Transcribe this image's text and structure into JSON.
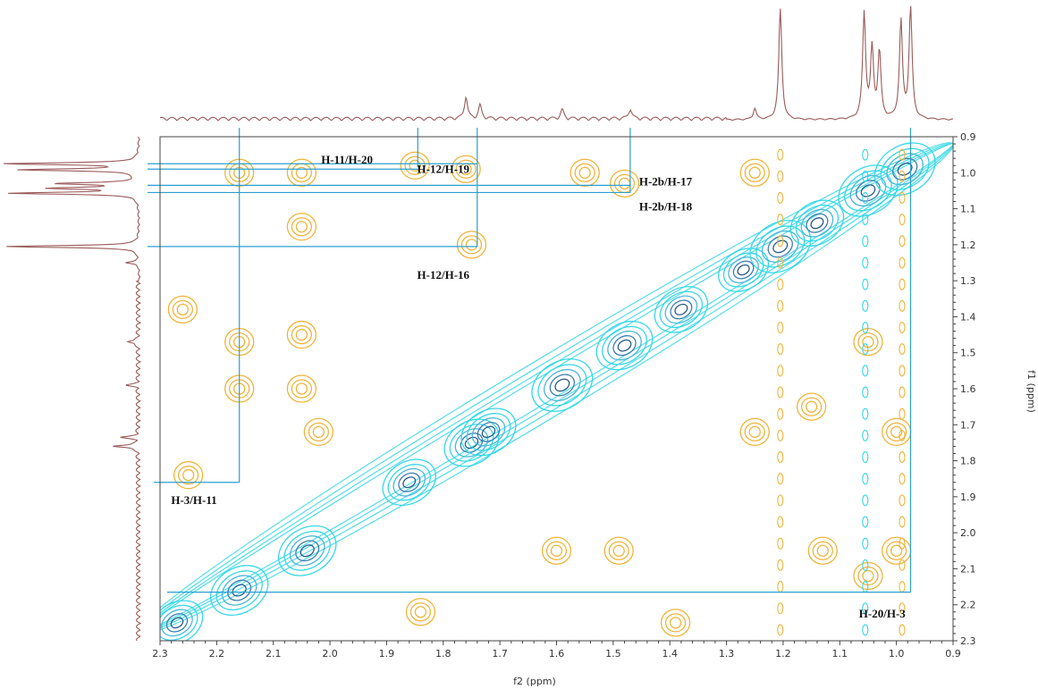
{
  "chart_data": {
    "type": "heatmap",
    "title": "",
    "xlabel": "f2 (ppm)",
    "ylabel": "f1 (ppm)",
    "xlim": [
      2.3,
      0.9
    ],
    "ylim": [
      0.9,
      2.3
    ],
    "x_ticks": [
      "2.3",
      "2.2",
      "2.1",
      "2.0",
      "1.9",
      "1.8",
      "1.7",
      "1.6",
      "1.5",
      "1.4",
      "1.3",
      "1.2",
      "1.1",
      "1.0",
      "0.9"
    ],
    "y_ticks": [
      "0.9",
      "1.0",
      "1.1",
      "1.2",
      "1.3",
      "1.4",
      "1.5",
      "1.6",
      "1.7",
      "1.8",
      "1.9",
      "2.0",
      "2.1",
      "2.2",
      "2.3"
    ],
    "colors": {
      "spectrum": "#9a5a5a",
      "diagonal_light": "#35d8e6",
      "diagonal_dark": "#2a5a8a",
      "cross_peaks": "#f0b43a",
      "guide_lines": "#2a9fd0",
      "frame": "#444444"
    },
    "peaks_1d": [
      {
        "ppm": 1.205,
        "height": 1.0
      },
      {
        "ppm": 1.057,
        "height": 0.95
      },
      {
        "ppm": 1.043,
        "height": 0.62
      },
      {
        "ppm": 1.03,
        "height": 0.6
      },
      {
        "ppm": 0.992,
        "height": 0.88
      },
      {
        "ppm": 0.975,
        "height": 1.0
      },
      {
        "ppm": 1.76,
        "height": 0.2
      },
      {
        "ppm": 1.735,
        "height": 0.12
      },
      {
        "ppm": 1.59,
        "height": 0.08
      },
      {
        "ppm": 1.47,
        "height": 0.09
      },
      {
        "ppm": 1.25,
        "height": 0.1
      }
    ],
    "diagonal_peaks": [
      {
        "x": 2.27,
        "y": 2.25,
        "intensity": 0.7
      },
      {
        "x": 2.16,
        "y": 2.16,
        "intensity": 0.9
      },
      {
        "x": 2.04,
        "y": 2.05,
        "intensity": 0.9
      },
      {
        "x": 1.86,
        "y": 1.86,
        "intensity": 0.75
      },
      {
        "x": 1.75,
        "y": 1.75,
        "intensity": 0.8
      },
      {
        "x": 1.72,
        "y": 1.72,
        "intensity": 0.8
      },
      {
        "x": 1.59,
        "y": 1.59,
        "intensity": 1.0
      },
      {
        "x": 1.48,
        "y": 1.48,
        "intensity": 0.85
      },
      {
        "x": 1.38,
        "y": 1.38,
        "intensity": 0.75
      },
      {
        "x": 1.27,
        "y": 1.27,
        "intensity": 0.65
      },
      {
        "x": 1.205,
        "y": 1.205,
        "intensity": 1.0
      },
      {
        "x": 1.14,
        "y": 1.14,
        "intensity": 0.75
      },
      {
        "x": 1.05,
        "y": 1.05,
        "intensity": 0.95
      },
      {
        "x": 0.985,
        "y": 0.99,
        "intensity": 1.0
      }
    ],
    "cross_peaks": [
      {
        "x": 2.16,
        "y": 1.0
      },
      {
        "x": 2.05,
        "y": 1.0
      },
      {
        "x": 2.05,
        "y": 1.15
      },
      {
        "x": 1.85,
        "y": 0.98
      },
      {
        "x": 1.76,
        "y": 0.99
      },
      {
        "x": 1.55,
        "y": 1.0
      },
      {
        "x": 1.48,
        "y": 1.03
      },
      {
        "x": 1.75,
        "y": 1.2
      },
      {
        "x": 2.26,
        "y": 1.38
      },
      {
        "x": 2.16,
        "y": 1.47
      },
      {
        "x": 2.16,
        "y": 1.6
      },
      {
        "x": 2.05,
        "y": 1.45
      },
      {
        "x": 2.05,
        "y": 1.6
      },
      {
        "x": 2.02,
        "y": 1.72
      },
      {
        "x": 2.25,
        "y": 1.84
      },
      {
        "x": 1.25,
        "y": 1.72
      },
      {
        "x": 1.25,
        "y": 1.0
      },
      {
        "x": 1.15,
        "y": 1.65
      },
      {
        "x": 1.13,
        "y": 2.05
      },
      {
        "x": 1.0,
        "y": 1.72
      },
      {
        "x": 1.0,
        "y": 2.05
      },
      {
        "x": 1.05,
        "y": 2.12
      },
      {
        "x": 1.6,
        "y": 2.05
      },
      {
        "x": 1.49,
        "y": 2.05
      },
      {
        "x": 1.84,
        "y": 2.22
      },
      {
        "x": 1.39,
        "y": 2.25
      },
      {
        "x": 1.05,
        "y": 1.47
      }
    ],
    "annotations": [
      {
        "label": "H-11/H-20",
        "x": 1.845,
        "y": 0.985,
        "lx": 1.97,
        "ly": 0.965
      },
      {
        "label": "H-12/H-19",
        "x": 1.74,
        "y": 0.975,
        "lx": 1.8,
        "ly": 0.99
      },
      {
        "label": "H-2b/H-17",
        "x": 1.47,
        "y": 1.035,
        "lx": 1.47,
        "ly": 1.025
      },
      {
        "label": "H-2b/H-18",
        "x": 1.47,
        "y": 1.055,
        "lx": 1.47,
        "ly": 1.095
      },
      {
        "label": "H-12/H-16",
        "x": 1.74,
        "y": 1.205,
        "lx": 1.8,
        "ly": 1.285
      },
      {
        "label": "H-3/H-11",
        "x": 2.16,
        "y": 1.86,
        "lx": 2.24,
        "ly": 1.91
      },
      {
        "label": "H-20/H-3",
        "x": 0.975,
        "y": 2.165,
        "lx": 1.025,
        "ly": 2.225
      }
    ]
  }
}
